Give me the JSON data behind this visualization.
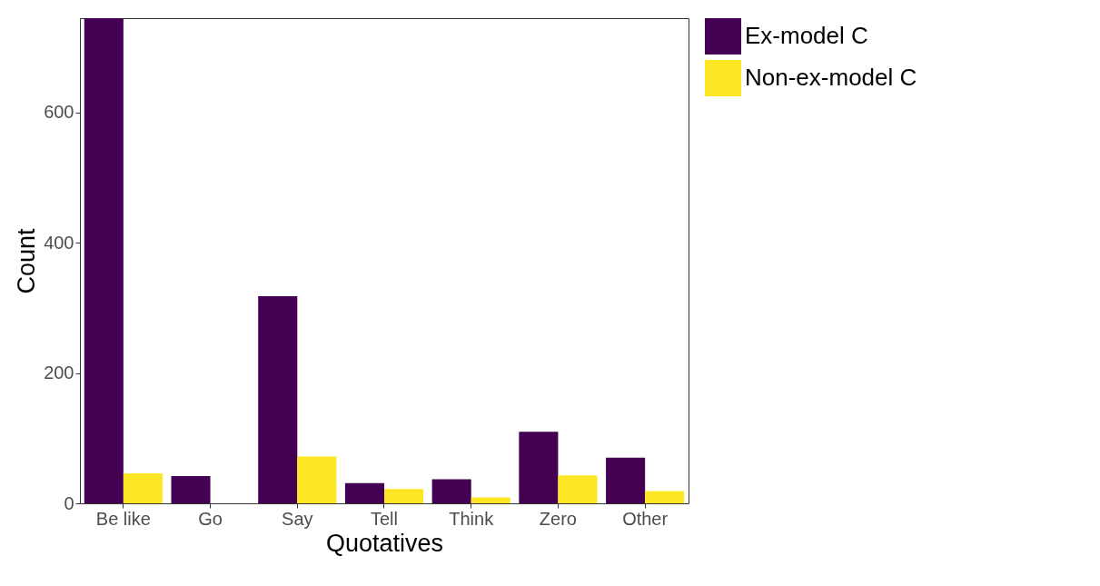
{
  "chart_data": {
    "type": "bar",
    "xlabel": "Quotatives",
    "ylabel": "Count",
    "categories": [
      "Be like",
      "Go",
      "Say",
      "Tell",
      "Think",
      "Zero",
      "Other"
    ],
    "series": [
      {
        "name": "Ex-model C",
        "color": "#440154",
        "values": [
          745,
          42,
          318,
          31,
          37,
          110,
          70
        ]
      },
      {
        "name": "Non-ex-model C",
        "color": "#fde725",
        "values": [
          46,
          0,
          72,
          22,
          9,
          43,
          19
        ]
      }
    ],
    "ylim": [
      0,
      745
    ],
    "yticks": [
      0,
      200,
      400,
      600
    ],
    "grid": false,
    "legend": "right"
  }
}
